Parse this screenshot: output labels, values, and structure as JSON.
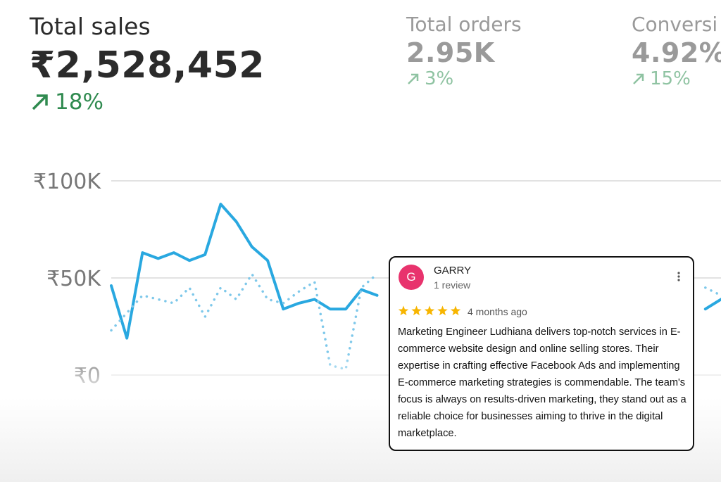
{
  "metrics": [
    {
      "label": "Total sales",
      "value": "₹2,528,452",
      "change": "18%"
    },
    {
      "label": "Total orders",
      "value": "2.95K",
      "change": "3%"
    },
    {
      "label": "Conversi",
      "value": "4.92%",
      "change": "15%"
    }
  ],
  "chart_data": {
    "type": "line",
    "categories": [
      null,
      null,
      null,
      null,
      null,
      null,
      null,
      null,
      null,
      null,
      null,
      null,
      null,
      null,
      null,
      null,
      null,
      null,
      null,
      null,
      null,
      null,
      null,
      null,
      null,
      null,
      null,
      null,
      null,
      null,
      null,
      null,
      null,
      null,
      null,
      null,
      null,
      null,
      null,
      null
    ],
    "series": [
      {
        "color": "#29a8e0",
        "style": "solid",
        "values": [
          46000,
          19000,
          63000,
          60000,
          63000,
          59000,
          62000,
          88000,
          79000,
          66000,
          59000,
          34000,
          37000,
          39000,
          34000,
          34000,
          44000,
          41000,
          null,
          null,
          null,
          null,
          null,
          null,
          null,
          null,
          null,
          null,
          null,
          null,
          null,
          null,
          null,
          null,
          null,
          null,
          null,
          null,
          34000,
          39000
        ]
      },
      {
        "color": "#7ec8ea",
        "style": "dotted",
        "values": [
          23000,
          32000,
          41000,
          39000,
          37000,
          45000,
          30000,
          45000,
          39000,
          52000,
          39000,
          37000,
          43000,
          48000,
          5000,
          3000,
          45000,
          52000,
          null,
          null,
          null,
          null,
          null,
          null,
          null,
          null,
          null,
          null,
          null,
          null,
          null,
          null,
          null,
          null,
          null,
          null,
          null,
          null,
          45000,
          41000
        ]
      }
    ],
    "ylim": [
      0,
      100000
    ],
    "yticks": [
      {
        "value": 0,
        "label": "₹0"
      },
      {
        "value": 50000,
        "label": "₹50K"
      },
      {
        "value": 100000,
        "label": "₹100K"
      }
    ],
    "grid": true
  },
  "review": {
    "avatar": "G",
    "name": "GARRY",
    "count": "1 review",
    "rating": 5,
    "time": "4 months ago",
    "text": "Marketing Engineer Ludhiana delivers top-notch services in E-commerce website design and online selling stores. Their expertise in crafting effective Facebook Ads and implementing E-commerce marketing strategies is commendable. The team's focus is always on results-driven marketing, they stand out as a reliable choice for businesses aiming to thrive in the digital marketplace."
  }
}
